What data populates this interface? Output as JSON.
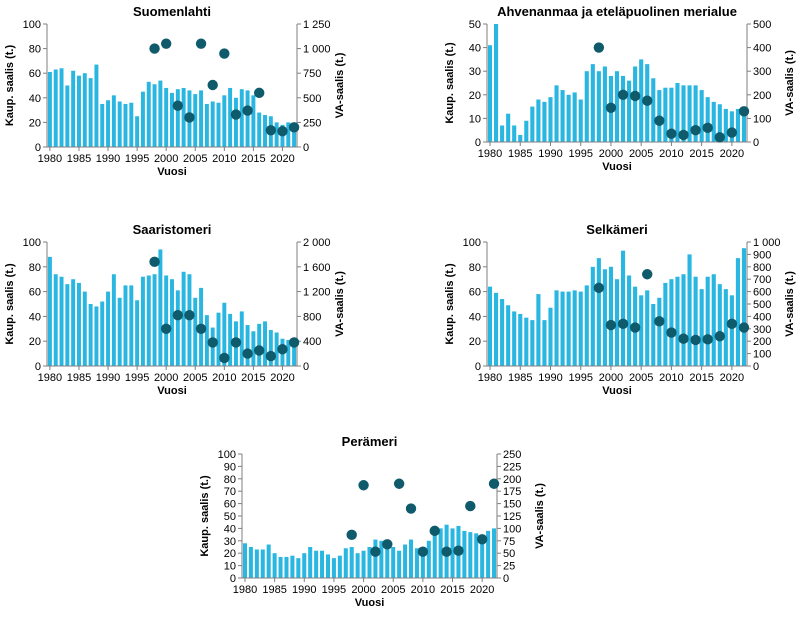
{
  "colors": {
    "bar": "#29b6e0",
    "dot": "#0f5a6b",
    "axis": "#7f7f7f",
    "text": "#000000"
  },
  "chart_data": [
    {
      "id": "suomenlahti",
      "type": "bar",
      "title": "Suomenlahti",
      "xlabel": "Vuosi",
      "ylabel": "Kaup. saalis (t.)",
      "y2label": "VA-saalis (t.)",
      "ylim": [
        0,
        100
      ],
      "yticks": [
        0,
        20,
        40,
        60,
        80,
        100
      ],
      "y2lim": [
        0,
        1250
      ],
      "y2ticks": [
        0,
        250,
        500,
        750,
        1000,
        1250
      ],
      "y2ticklabels": [
        "0",
        "250",
        "500",
        "750",
        "1 000",
        "1 250"
      ],
      "xticks": [
        "1980",
        "1985",
        "1990",
        "1995",
        "2000",
        "2005",
        "2010",
        "2015",
        "2020"
      ],
      "years": [
        1980,
        1981,
        1982,
        1983,
        1984,
        1985,
        1986,
        1987,
        1988,
        1989,
        1990,
        1991,
        1992,
        1993,
        1994,
        1995,
        1996,
        1997,
        1998,
        1999,
        2000,
        2001,
        2002,
        2003,
        2004,
        2005,
        2006,
        2007,
        2008,
        2009,
        2010,
        2011,
        2012,
        2013,
        2014,
        2015,
        2016,
        2017,
        2018,
        2019,
        2020,
        2021,
        2022
      ],
      "series": [
        {
          "name": "Kaup. saalis",
          "axis": "left",
          "values": [
            61,
            63,
            64,
            50,
            62,
            58,
            60,
            56,
            67,
            35,
            38,
            42,
            37,
            35,
            36,
            25,
            45,
            53,
            51,
            54,
            48,
            44,
            47,
            48,
            46,
            43,
            46,
            35,
            37,
            36,
            42,
            48,
            40,
            47,
            46,
            42,
            28,
            26,
            25,
            20,
            18,
            20,
            18
          ]
        },
        {
          "name": "VA-saalis",
          "axis": "right",
          "points": [
            [
              1998,
              1000
            ],
            [
              2000,
              1050
            ],
            [
              2002,
              420
            ],
            [
              2004,
              300
            ],
            [
              2006,
              1050
            ],
            [
              2008,
              630
            ],
            [
              2010,
              950
            ],
            [
              2012,
              330
            ],
            [
              2014,
              370
            ],
            [
              2016,
              550
            ],
            [
              2018,
              170
            ],
            [
              2020,
              160
            ],
            [
              2022,
              200
            ]
          ]
        }
      ]
    },
    {
      "id": "ahvenanmaa",
      "type": "bar",
      "title": "Ahvenanmaa ja eteläpuolinen merialue",
      "xlabel": "Vuosi",
      "ylabel": "Kaup. saalis (t.)",
      "y2label": "VA-saalis (t.)",
      "ylim": [
        0,
        50
      ],
      "yticks": [
        0,
        10,
        20,
        30,
        40,
        50
      ],
      "y2lim": [
        0,
        500
      ],
      "y2ticks": [
        0,
        100,
        200,
        300,
        400,
        500
      ],
      "y2ticklabels": [
        "0",
        "100",
        "200",
        "300",
        "400",
        "500"
      ],
      "xticks": [
        "1980",
        "1985",
        "1990",
        "1995",
        "2000",
        "2005",
        "2010",
        "2015",
        "2020"
      ],
      "years": [
        1980,
        1981,
        1982,
        1983,
        1984,
        1985,
        1986,
        1987,
        1988,
        1989,
        1990,
        1991,
        1992,
        1993,
        1994,
        1995,
        1996,
        1997,
        1998,
        1999,
        2000,
        2001,
        2002,
        2003,
        2004,
        2005,
        2006,
        2007,
        2008,
        2009,
        2010,
        2011,
        2012,
        2013,
        2014,
        2015,
        2016,
        2017,
        2018,
        2019,
        2020,
        2021,
        2022
      ],
      "series": [
        {
          "name": "Kaup. saalis",
          "axis": "left",
          "values": [
            41,
            50,
            7,
            12,
            7,
            3,
            9,
            15,
            18,
            17,
            19,
            24,
            22,
            20,
            21,
            18,
            30,
            33,
            30,
            32,
            28,
            30,
            28,
            26,
            32,
            35,
            33,
            27,
            22,
            23,
            23,
            25,
            24,
            24,
            24,
            22,
            19,
            17,
            16,
            14,
            13,
            14,
            15
          ]
        },
        {
          "name": "VA-saalis",
          "axis": "right",
          "points": [
            [
              1998,
              400
            ],
            [
              2000,
              145
            ],
            [
              2002,
              200
            ],
            [
              2004,
              195
            ],
            [
              2006,
              175
            ],
            [
              2008,
              90
            ],
            [
              2010,
              35
            ],
            [
              2012,
              30
            ],
            [
              2014,
              50
            ],
            [
              2016,
              60
            ],
            [
              2018,
              20
            ],
            [
              2020,
              40
            ],
            [
              2022,
              130
            ]
          ]
        }
      ]
    },
    {
      "id": "saaristomeri",
      "type": "bar",
      "title": "Saaristomeri",
      "xlabel": "Vuosi",
      "ylabel": "Kaup. saalis (t.)",
      "y2label": "VA-saalis (t.)",
      "ylim": [
        0,
        100
      ],
      "yticks": [
        0,
        20,
        40,
        60,
        80,
        100
      ],
      "y2lim": [
        0,
        2000
      ],
      "y2ticks": [
        0,
        400,
        800,
        1200,
        1600,
        2000
      ],
      "y2ticklabels": [
        "0",
        "400",
        "800",
        "1 200",
        "1 600",
        "2 000"
      ],
      "xticks": [
        "1980",
        "1985",
        "1990",
        "1995",
        "2000",
        "2005",
        "2010",
        "2015",
        "2020"
      ],
      "years": [
        1980,
        1981,
        1982,
        1983,
        1984,
        1985,
        1986,
        1987,
        1988,
        1989,
        1990,
        1991,
        1992,
        1993,
        1994,
        1995,
        1996,
        1997,
        1998,
        1999,
        2000,
        2001,
        2002,
        2003,
        2004,
        2005,
        2006,
        2007,
        2008,
        2009,
        2010,
        2011,
        2012,
        2013,
        2014,
        2015,
        2016,
        2017,
        2018,
        2019,
        2020,
        2021,
        2022
      ],
      "series": [
        {
          "name": "Kaup. saalis",
          "axis": "left",
          "values": [
            88,
            74,
            72,
            66,
            70,
            67,
            60,
            50,
            48,
            52,
            60,
            74,
            55,
            65,
            65,
            53,
            72,
            73,
            74,
            94,
            73,
            70,
            61,
            76,
            74,
            55,
            63,
            41,
            31,
            43,
            51,
            42,
            36,
            44,
            33,
            28,
            34,
            36,
            29,
            27,
            22,
            21,
            20
          ]
        },
        {
          "name": "VA-saalis",
          "axis": "right",
          "points": [
            [
              1998,
              1680
            ],
            [
              2000,
              600
            ],
            [
              2002,
              820
            ],
            [
              2004,
              820
            ],
            [
              2006,
              600
            ],
            [
              2008,
              380
            ],
            [
              2010,
              130
            ],
            [
              2012,
              380
            ],
            [
              2014,
              200
            ],
            [
              2016,
              250
            ],
            [
              2018,
              160
            ],
            [
              2020,
              270
            ],
            [
              2022,
              380
            ]
          ]
        }
      ]
    },
    {
      "id": "selkameri",
      "type": "bar",
      "title": "Selkämeri",
      "xlabel": "Vuosi",
      "ylabel": "Kaup. saalis (t.)",
      "y2label": "VA-saalis (t.)",
      "ylim": [
        0,
        100
      ],
      "yticks": [
        0,
        20,
        40,
        60,
        80,
        100
      ],
      "y2lim": [
        0,
        1000
      ],
      "y2ticks": [
        0,
        100,
        200,
        300,
        400,
        500,
        600,
        700,
        800,
        900,
        1000
      ],
      "y2ticklabels": [
        "0",
        "100",
        "200",
        "300",
        "400",
        "500",
        "600",
        "700",
        "800",
        "900",
        "1 000"
      ],
      "xticks": [
        "1980",
        "1985",
        "1990",
        "1995",
        "2000",
        "2005",
        "2010",
        "2015",
        "2020"
      ],
      "years": [
        1980,
        1981,
        1982,
        1983,
        1984,
        1985,
        1986,
        1987,
        1988,
        1989,
        1990,
        1991,
        1992,
        1993,
        1994,
        1995,
        1996,
        1997,
        1998,
        1999,
        2000,
        2001,
        2002,
        2003,
        2004,
        2005,
        2006,
        2007,
        2008,
        2009,
        2010,
        2011,
        2012,
        2013,
        2014,
        2015,
        2016,
        2017,
        2018,
        2019,
        2020,
        2021,
        2022
      ],
      "series": [
        {
          "name": "Kaup. saalis",
          "axis": "left",
          "values": [
            64,
            59,
            54,
            49,
            44,
            42,
            39,
            37,
            58,
            37,
            47,
            61,
            60,
            60,
            61,
            60,
            65,
            80,
            87,
            78,
            80,
            70,
            93,
            73,
            64,
            57,
            61,
            50,
            55,
            67,
            70,
            72,
            74,
            90,
            72,
            62,
            72,
            74,
            66,
            62,
            57,
            87,
            95
          ]
        },
        {
          "name": "VA-saalis",
          "axis": "right",
          "points": [
            [
              1998,
              630
            ],
            [
              2000,
              330
            ],
            [
              2002,
              340
            ],
            [
              2004,
              310
            ],
            [
              2006,
              740
            ],
            [
              2008,
              360
            ],
            [
              2010,
              270
            ],
            [
              2012,
              220
            ],
            [
              2014,
              210
            ],
            [
              2016,
              215
            ],
            [
              2018,
              240
            ],
            [
              2020,
              340
            ],
            [
              2022,
              310
            ]
          ]
        }
      ]
    },
    {
      "id": "peramari",
      "type": "bar",
      "title": "Perämeri",
      "xlabel": "Vuosi",
      "ylabel": "Kaup. saalis (t.)",
      "y2label": "VA-saalis (t.)",
      "ylim": [
        0,
        100
      ],
      "yticks": [
        0,
        10,
        20,
        30,
        40,
        50,
        60,
        70,
        80,
        90,
        100
      ],
      "y2lim": [
        0,
        250
      ],
      "y2ticks": [
        0,
        25,
        50,
        75,
        100,
        125,
        150,
        175,
        200,
        225,
        250
      ],
      "y2ticklabels": [
        "0",
        "25",
        "50",
        "75",
        "100",
        "125",
        "150",
        "175",
        "200",
        "225",
        "250"
      ],
      "xticks": [
        "1980",
        "1985",
        "1990",
        "1995",
        "2000",
        "2005",
        "2010",
        "2015",
        "2020"
      ],
      "years": [
        1980,
        1981,
        1982,
        1983,
        1984,
        1985,
        1986,
        1987,
        1988,
        1989,
        1990,
        1991,
        1992,
        1993,
        1994,
        1995,
        1996,
        1997,
        1998,
        1999,
        2000,
        2001,
        2002,
        2003,
        2004,
        2005,
        2006,
        2007,
        2008,
        2009,
        2010,
        2011,
        2012,
        2013,
        2014,
        2015,
        2016,
        2017,
        2018,
        2019,
        2020,
        2021,
        2022
      ],
      "series": [
        {
          "name": "Kaup. saalis",
          "axis": "left",
          "values": [
            28,
            25,
            23,
            23,
            27,
            20,
            17,
            17,
            18,
            16,
            20,
            25,
            22,
            22,
            19,
            16,
            18,
            24,
            25,
            20,
            22,
            25,
            31,
            30,
            25,
            25,
            22,
            27,
            31,
            24,
            22,
            30,
            36,
            40,
            43,
            40,
            42,
            38,
            37,
            36,
            35,
            38,
            40
          ]
        },
        {
          "name": "VA-saalis",
          "axis": "right",
          "points": [
            [
              1998,
              87
            ],
            [
              2000,
              187
            ],
            [
              2002,
              53
            ],
            [
              2004,
              68
            ],
            [
              2006,
              190
            ],
            [
              2008,
              140
            ],
            [
              2010,
              53
            ],
            [
              2012,
              95
            ],
            [
              2014,
              53
            ],
            [
              2016,
              55
            ],
            [
              2018,
              145
            ],
            [
              2020,
              78
            ],
            [
              2022,
              190
            ]
          ]
        }
      ]
    }
  ]
}
